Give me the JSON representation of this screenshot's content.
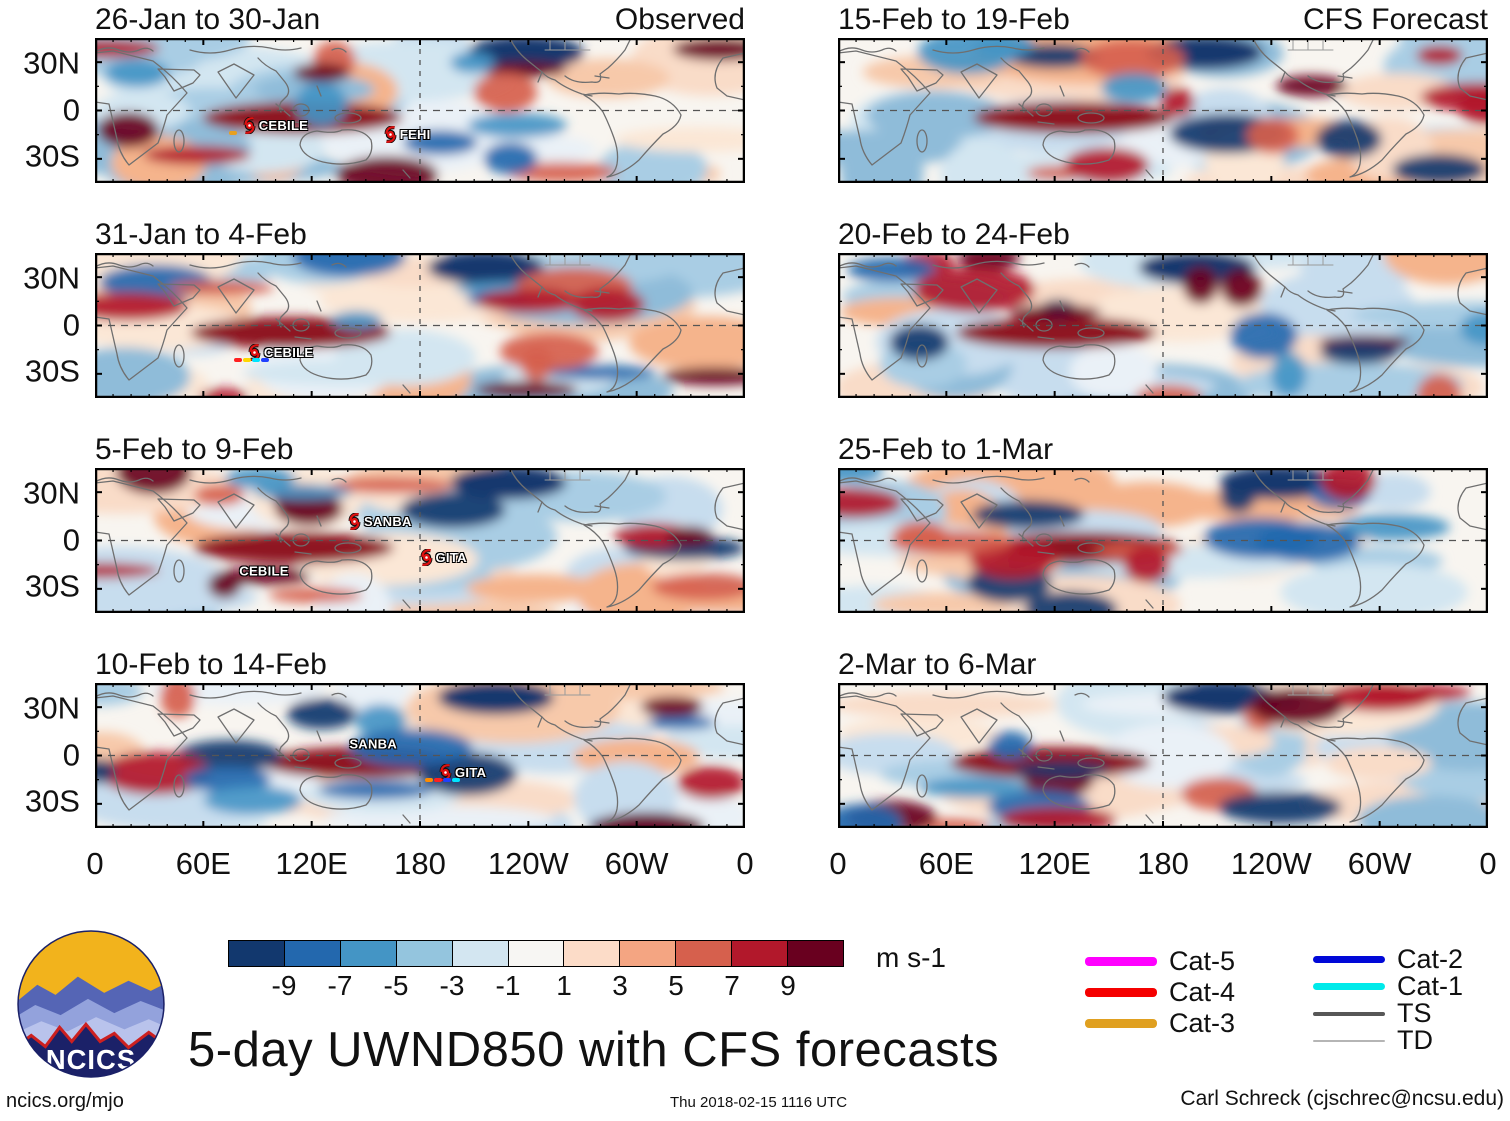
{
  "figure": {
    "main_title": "5-day UWND850 with CFS forecasts",
    "website": "ncics.org/mjo",
    "timestamp": "Thu 2018-02-15 1116 UTC",
    "credit": "Carl Schreck (cjschrec@ncsu.edu)",
    "logo_text": "NCICS"
  },
  "chart_data": {
    "type": "heatmap",
    "title": "5-day UWND850 with CFS forecasts",
    "column_headers": {
      "left": "Observed",
      "right": "CFS Forecast"
    },
    "units": "m s-1",
    "x_ticks": [
      "0",
      "60E",
      "120E",
      "180",
      "120W",
      "60W",
      "0"
    ],
    "y_ticks": [
      "30N",
      "0",
      "30S"
    ],
    "colorbar": {
      "ticks": [
        "-9",
        "-7",
        "-5",
        "-3",
        "-1",
        "1",
        "3",
        "5",
        "7",
        "9"
      ],
      "colors": [
        "#12386e",
        "#2368ae",
        "#4495c5",
        "#94c5de",
        "#d3e6f1",
        "#f7f6f3",
        "#fcdcc8",
        "#f4a582",
        "#d6604d",
        "#b2182b",
        "#69001f"
      ],
      "units_label": "m s-1"
    },
    "panels": [
      {
        "kind": "observed",
        "title": "26-Jan to 30-Jan",
        "corner": "Observed",
        "storms": [
          {
            "name": "CEBILE",
            "x": 23.8,
            "y": 61,
            "marker": true,
            "track": [
              "#e8a020"
            ]
          },
          {
            "name": "FEHI",
            "x": 45.5,
            "y": 67,
            "marker": true,
            "track": []
          }
        ]
      },
      {
        "kind": "observed",
        "title": "31-Jan to 4-Feb",
        "corner": "",
        "storms": [
          {
            "name": "CEBILE",
            "x": 24.6,
            "y": 69,
            "marker": true,
            "track": [
              "#ff2020",
              "#ffd700",
              "#00e5ff",
              "#2040ff"
            ]
          }
        ]
      },
      {
        "kind": "observed",
        "title": "5-Feb to 9-Feb",
        "corner": "",
        "storms": [
          {
            "name": "SANBA",
            "x": 40,
            "y": 37,
            "marker": true,
            "track": []
          },
          {
            "name": "GITA",
            "x": 51,
            "y": 62,
            "marker": true,
            "track": []
          },
          {
            "name": "CEBILE",
            "x": 26,
            "y": 71,
            "marker": false,
            "track": []
          }
        ]
      },
      {
        "kind": "observed",
        "title": "10-Feb to 14-Feb",
        "corner": "",
        "storms": [
          {
            "name": "SANBA",
            "x": 42.8,
            "y": 42,
            "marker": false,
            "track": []
          },
          {
            "name": "GITA",
            "x": 54,
            "y": 62,
            "marker": true,
            "track": [
              "#ff8c00",
              "#ff2020",
              "#2040ff",
              "#00e5ff"
            ]
          }
        ]
      },
      {
        "kind": "forecast",
        "title": "15-Feb to 19-Feb",
        "corner": "CFS Forecast",
        "storms": []
      },
      {
        "kind": "forecast",
        "title": "20-Feb to 24-Feb",
        "corner": "",
        "storms": []
      },
      {
        "kind": "forecast",
        "title": "25-Feb to 1-Mar",
        "corner": "",
        "storms": []
      },
      {
        "kind": "forecast",
        "title": "2-Mar to 6-Mar",
        "corner": "",
        "storms": []
      }
    ],
    "legend": {
      "col1": [
        {
          "label": "Cat-5",
          "color": "#ff00ff",
          "lw": 9
        },
        {
          "label": "Cat-4",
          "color": "#f50000",
          "lw": 9
        },
        {
          "label": "Cat-3",
          "color": "#e0a020",
          "lw": 9
        }
      ],
      "col2": [
        {
          "label": "Cat-2",
          "color": "#0008d8",
          "lw": 7
        },
        {
          "label": "Cat-1",
          "color": "#00eaea",
          "lw": 7
        },
        {
          "label": "TS",
          "color": "#575757",
          "lw": 4
        },
        {
          "label": "TD",
          "color": "#b5b5b5",
          "lw": 2
        }
      ]
    }
  }
}
